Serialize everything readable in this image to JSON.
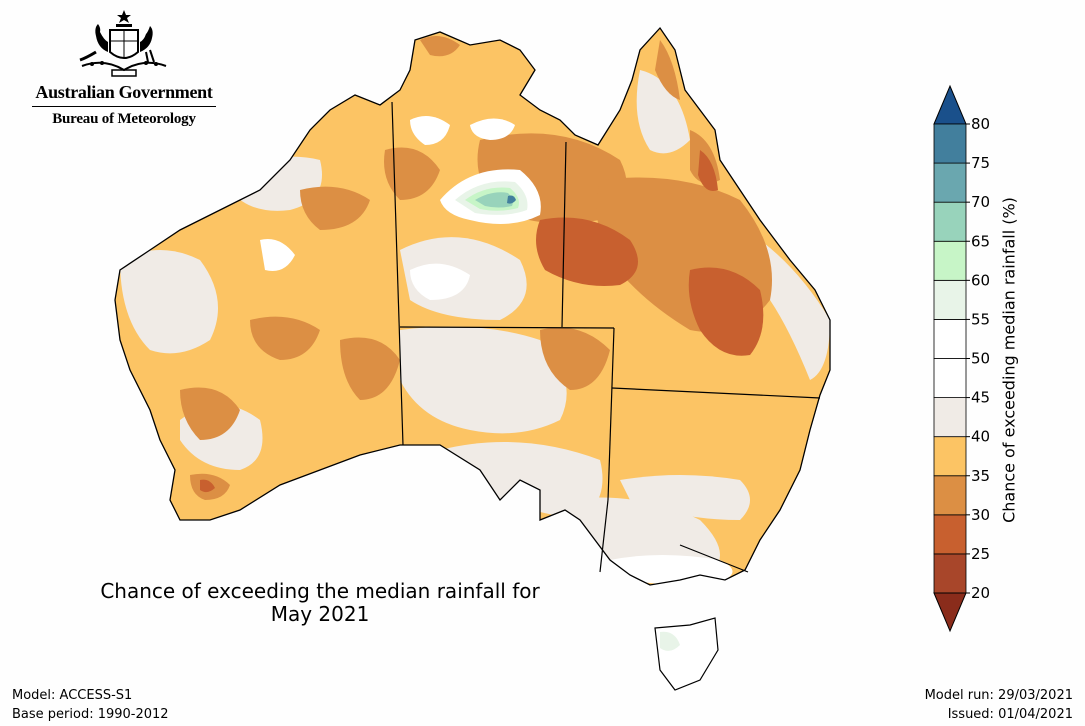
{
  "branding": {
    "government": "Australian Government",
    "bureau": "Bureau of Meteorology"
  },
  "map": {
    "title_line1": "Chance of exceeding the median rainfall for",
    "title_line2": "May 2021",
    "region": "Australia"
  },
  "colorbar": {
    "label": "Chance of exceeding median rainfall (%)",
    "ticks": [
      "20",
      "25",
      "30",
      "35",
      "40",
      "45",
      "50",
      "55",
      "60",
      "65",
      "70",
      "75",
      "80"
    ],
    "colors": [
      "#a8462a",
      "#c8602f",
      "#dc8f44",
      "#fcc464",
      "#f0ebe6",
      "#ffffff",
      "#ffffff",
      "#e8f4e8",
      "#c7f5c7",
      "#98d3bb",
      "#6aa7af",
      "#427f9d",
      "#1c5593"
    ],
    "under_color": "#8a2c1b",
    "over_color": "#1a508b"
  },
  "footer": {
    "model": "Model: ACCESS-S1",
    "base_period": "Base period: 1990-2012",
    "model_run": "Model run: 29/03/2021",
    "issued": "Issued: 01/04/2021"
  }
}
